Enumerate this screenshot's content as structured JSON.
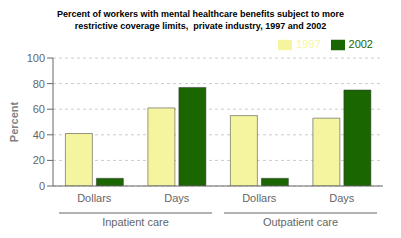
{
  "chart_data": {
    "type": "bar",
    "title": "Percent of workers with mental healthcare benefits subject to more\nrestrictive coverage limits,  private industry, 1997 and 2002",
    "ylabel": "Percent",
    "categories": [
      "Dollars",
      "Days",
      "Dollars",
      "Days"
    ],
    "category_groups": [
      "Inpatient care",
      "Inpatient care",
      "Outpatient care",
      "Outpatient care"
    ],
    "series": [
      {
        "name": "1997",
        "color": "#f5f5a0",
        "values": [
          41,
          61,
          55,
          53
        ]
      },
      {
        "name": "2002",
        "color": "#1a6600",
        "values": [
          6,
          77,
          6,
          75
        ]
      }
    ],
    "ylim": [
      0,
      100
    ],
    "yticks": [
      0,
      20,
      40,
      60,
      80,
      100
    ],
    "grid": true,
    "legend": "upper right"
  }
}
